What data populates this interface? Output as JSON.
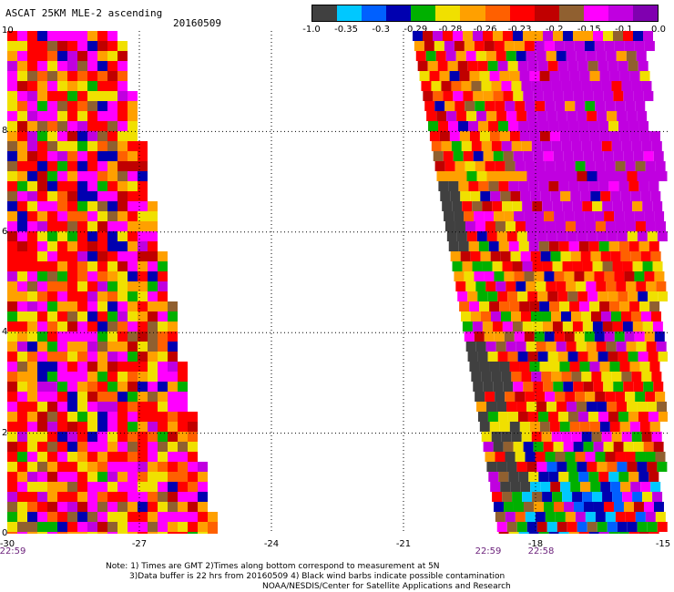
{
  "header": {
    "title": "ASCAT 25KM MLE-2 ascending",
    "date": "20160509"
  },
  "colorbar": {
    "colors": [
      "#404040",
      "#00c8ff",
      "#0060ff",
      "#0000b0",
      "#00b000",
      "#f0e000",
      "#ffa000",
      "#ff6000",
      "#ff0000",
      "#c00000",
      "#906030",
      "#ff00ff",
      "#c000e0",
      "#8000b0"
    ],
    "labels": [
      "-1.0",
      "-0.35",
      "-0.3",
      "-0.29",
      "-0.28",
      "-0.26",
      "-0.23",
      "-0.2",
      "-0.15",
      "-0.1",
      "0.0"
    ]
  },
  "map": {
    "x_ticks": [
      "-30",
      "-27",
      "-24",
      "-21",
      "-18",
      "-15"
    ],
    "y_ticks": [
      "0",
      "2",
      "4",
      "6",
      "8",
      "10"
    ],
    "lon_range": [
      -30,
      -15
    ],
    "lat_range": [
      0,
      10
    ],
    "times": [
      {
        "label": "22:59",
        "lon": -30
      },
      {
        "label": "22:59",
        "lon": -19.2
      },
      {
        "label": "22:58",
        "lon": -18
      }
    ]
  },
  "notes": [
    "Note: 1) Times are GMT 2)Times along bottom correspond to measurement at 5N",
    "3)Data buffer is 22 hrs from 20160509 4) Black wind barbs indicate possible contamination",
    "NOAA/NESDIS/Center for Satellite Applications and Research"
  ]
}
